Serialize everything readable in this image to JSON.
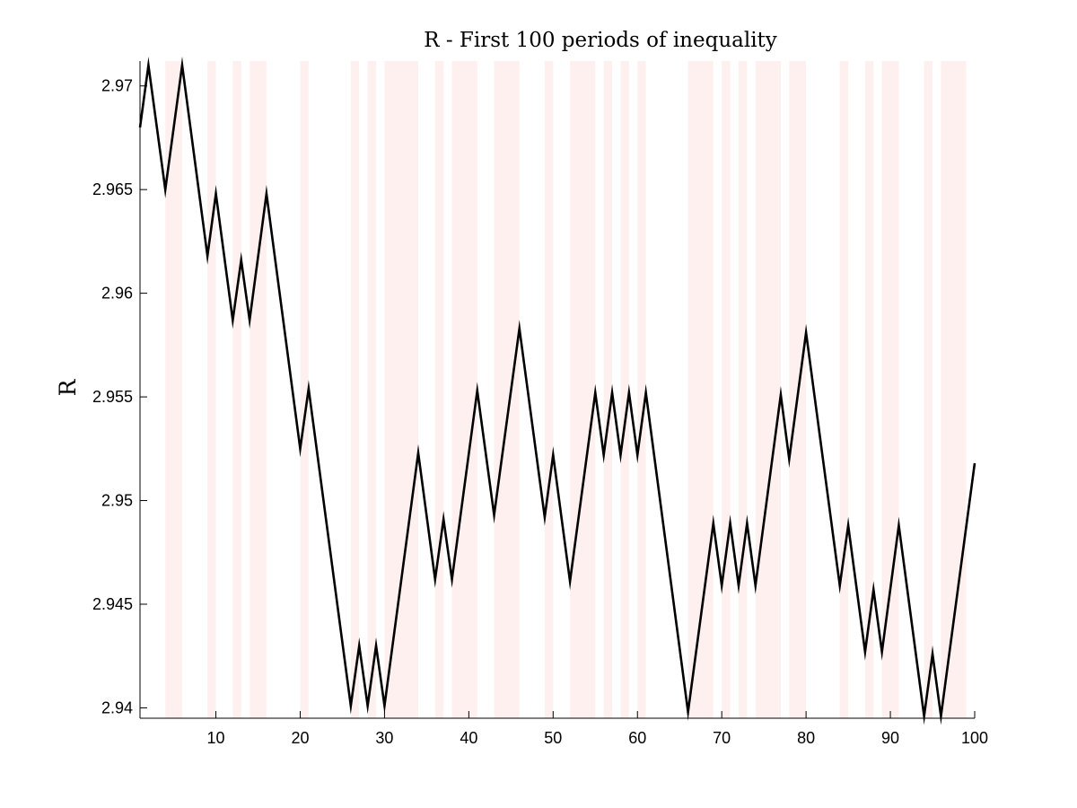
{
  "chart_data": {
    "type": "line",
    "title": "R - First 100 periods of inequality",
    "xlabel": "",
    "ylabel": "R",
    "xlim": [
      1,
      100
    ],
    "ylim": [
      2.9395,
      2.9712
    ],
    "grid": false,
    "legend": "none",
    "colors": {
      "line": "#000000",
      "shade": "#fff0f0",
      "axis": "#000000"
    },
    "x_ticks": [
      {
        "value": 10,
        "label": "10"
      },
      {
        "value": 20,
        "label": "20"
      },
      {
        "value": 30,
        "label": "30"
      },
      {
        "value": 40,
        "label": "40"
      },
      {
        "value": 50,
        "label": "50"
      },
      {
        "value": 60,
        "label": "60"
      },
      {
        "value": 70,
        "label": "70"
      },
      {
        "value": 80,
        "label": "80"
      },
      {
        "value": 90,
        "label": "90"
      },
      {
        "value": 100,
        "label": "100"
      }
    ],
    "y_ticks": [
      {
        "value": 2.94,
        "label": "2.94"
      },
      {
        "value": 2.945,
        "label": "2.945"
      },
      {
        "value": 2.95,
        "label": "2.95"
      },
      {
        "value": 2.955,
        "label": "2.955"
      },
      {
        "value": 2.96,
        "label": "2.96"
      },
      {
        "value": 2.965,
        "label": "2.965"
      },
      {
        "value": 2.97,
        "label": "2.97"
      }
    ],
    "shaded_periods": [
      [
        4,
        6
      ],
      [
        9,
        10
      ],
      [
        12,
        13
      ],
      [
        14,
        16
      ],
      [
        20,
        21
      ],
      [
        26,
        27
      ],
      [
        28,
        29
      ],
      [
        30,
        34
      ],
      [
        36,
        37
      ],
      [
        38,
        41
      ],
      [
        43,
        46
      ],
      [
        49,
        50
      ],
      [
        52,
        55
      ],
      [
        56,
        57
      ],
      [
        58,
        59
      ],
      [
        60,
        61
      ],
      [
        66,
        69
      ],
      [
        70,
        71
      ],
      [
        72,
        73
      ],
      [
        74,
        77
      ],
      [
        78,
        80
      ],
      [
        84,
        85
      ],
      [
        87,
        88
      ],
      [
        89,
        91
      ],
      [
        94,
        95
      ],
      [
        96,
        99
      ]
    ],
    "series": [
      {
        "x": [
          1,
          2,
          4,
          6,
          9,
          10,
          12,
          13,
          14,
          16,
          20,
          21,
          26,
          27,
          28,
          29,
          30,
          34,
          36,
          37,
          38,
          41,
          43,
          46,
          49,
          50,
          52,
          55,
          56,
          57,
          58,
          59,
          60,
          61,
          66,
          69,
          70,
          71,
          72,
          73,
          74,
          77,
          78,
          80,
          84,
          85,
          87,
          88,
          89,
          91,
          94,
          95,
          96,
          100
        ],
        "y": [
          2.968,
          2.971,
          2.965,
          2.971,
          2.9618,
          2.9648,
          2.9587,
          2.9616,
          2.9587,
          2.9648,
          2.9525,
          2.9554,
          2.9401,
          2.943,
          2.9401,
          2.943,
          2.9401,
          2.9523,
          2.9462,
          2.9491,
          2.9462,
          2.9553,
          2.9493,
          2.9583,
          2.9492,
          2.9522,
          2.9461,
          2.9552,
          2.9522,
          2.9552,
          2.9522,
          2.9552,
          2.9522,
          2.9552,
          2.9398,
          2.9489,
          2.9459,
          2.9489,
          2.9459,
          2.9489,
          2.9459,
          2.9551,
          2.952,
          2.9581,
          2.9459,
          2.9488,
          2.9427,
          2.9457,
          2.9427,
          2.9488,
          2.9396,
          2.9426,
          2.9396,
          2.9518
        ]
      }
    ]
  }
}
